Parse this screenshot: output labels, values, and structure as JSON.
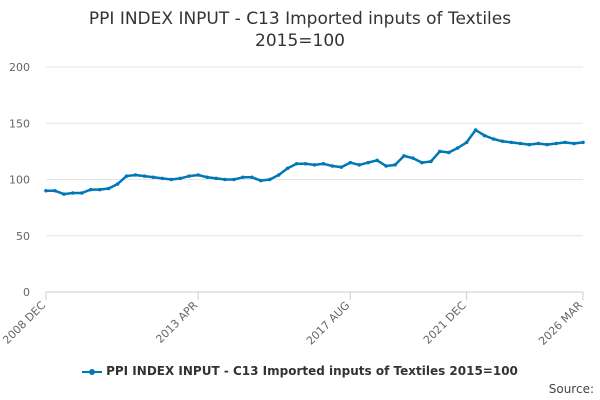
{
  "source_label": "Source:",
  "chart_data": {
    "type": "line",
    "title": "PPI INDEX INPUT - C13 Imported inputs of Textiles\n2015=100",
    "xlabel": "",
    "ylabel": "",
    "ylim": [
      0,
      200
    ],
    "yticks": [
      0,
      50,
      100,
      150,
      200
    ],
    "x_ticks": [
      "2008 DEC",
      "2013 APR",
      "2017 AUG",
      "2021 DEC",
      "2026 MAR"
    ],
    "grid": true,
    "legend_position": "bottom",
    "series_color": "#0077b6",
    "series": [
      {
        "name": "PPI INDEX INPUT - C13 Imported inputs of Textiles 2015=100",
        "x": [
          "2008 DEC",
          "2009 MAR",
          "2009 JUN",
          "2009 SEP",
          "2009 DEC",
          "2010 MAR",
          "2010 JUN",
          "2010 SEP",
          "2010 DEC",
          "2011 MAR",
          "2011 JUN",
          "2011 SEP",
          "2011 DEC",
          "2012 MAR",
          "2012 JUN",
          "2012 SEP",
          "2012 DEC",
          "2013 APR",
          "2013 JUL",
          "2013 OCT",
          "2014 JAN",
          "2014 APR",
          "2014 JUL",
          "2014 OCT",
          "2015 JAN",
          "2015 APR",
          "2015 JUL",
          "2015 OCT",
          "2016 JAN",
          "2016 APR",
          "2016 JUL",
          "2016 OCT",
          "2017 JAN",
          "2017 APR",
          "2017 AUG",
          "2017 DEC",
          "2018 APR",
          "2018 AUG",
          "2018 DEC",
          "2019 APR",
          "2019 AUG",
          "2019 DEC",
          "2020 APR",
          "2020 AUG",
          "2020 DEC",
          "2021 APR",
          "2021 AUG",
          "2021 DEC",
          "2022 APR",
          "2022 AUG",
          "2022 DEC",
          "2023 APR",
          "2023 AUG",
          "2023 DEC",
          "2024 APR",
          "2024 AUG",
          "2024 DEC",
          "2025 APR",
          "2025 AUG",
          "2025 DEC",
          "2026 MAR"
        ],
        "values": [
          90,
          90,
          87,
          88,
          88,
          91,
          91,
          92,
          96,
          103,
          104,
          103,
          102,
          101,
          100,
          101,
          103,
          104,
          102,
          101,
          100,
          100,
          102,
          102,
          99,
          100,
          104,
          110,
          114,
          114,
          113,
          114,
          112,
          111,
          115,
          113,
          115,
          117,
          112,
          113,
          121,
          119,
          115,
          116,
          125,
          124,
          128,
          133,
          144,
          139,
          136,
          134,
          133,
          132,
          131,
          132,
          131,
          132,
          133,
          132,
          133
        ]
      }
    ]
  }
}
